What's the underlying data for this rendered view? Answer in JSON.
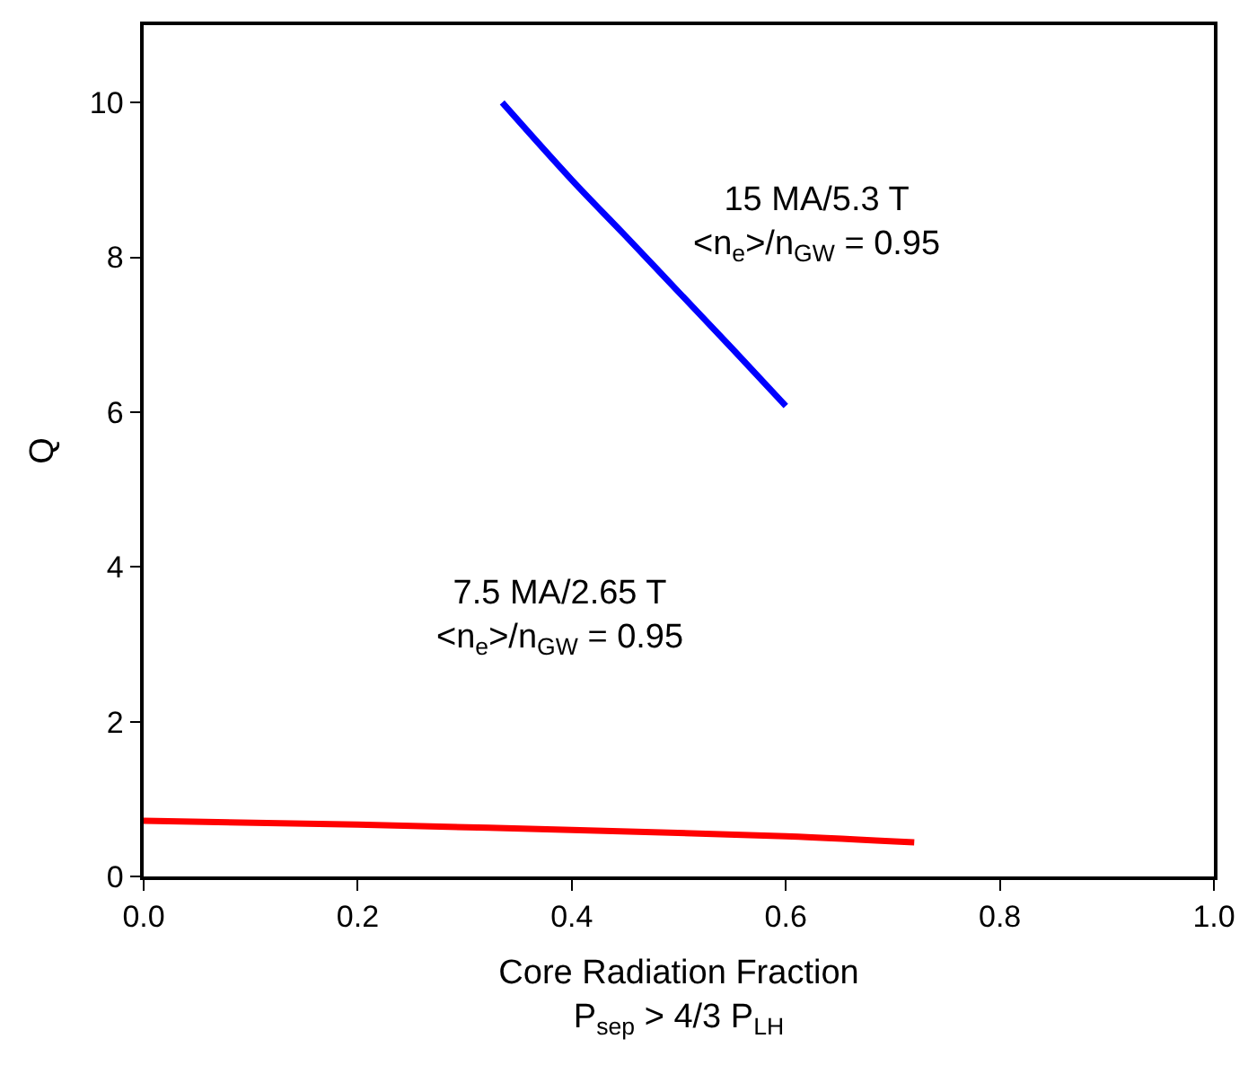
{
  "chart_data": {
    "type": "line",
    "xlabel": "Core Radiation Fraction\nP$_{sep}$ > 4/3 P$_{LH}$",
    "ylabel": "Q",
    "xlim": [
      0,
      1
    ],
    "ylim": [
      0,
      11
    ],
    "xticks": [
      {
        "value": 0,
        "label": "0.0"
      },
      {
        "value": 0.2,
        "label": "0.2"
      },
      {
        "value": 0.4,
        "label": "0.4"
      },
      {
        "value": 0.6,
        "label": "0.6"
      },
      {
        "value": 0.8,
        "label": "0.8"
      },
      {
        "value": 1,
        "label": "1.0"
      }
    ],
    "yticks": [
      0,
      2,
      4,
      6,
      8,
      10
    ],
    "series": [
      {
        "color": "#0000ff",
        "x": [
          0.335,
          0.4,
          0.45,
          0.5,
          0.55,
          0.6
        ],
        "values": [
          10,
          9.0,
          8.28,
          7.55,
          6.82,
          6.08
        ]
      },
      {
        "color": "#ff0000",
        "x": [
          0,
          0.2,
          0.4,
          0.6,
          0.72
        ],
        "values": [
          0.72,
          0.67,
          0.6,
          0.52,
          0.44
        ]
      }
    ],
    "annotations": [
      "15 MA/5.3 T\n<n$_{e}$>/n$_{GW}$ = 0.95",
      "7.5 MA/2.65 T\n<n$_{e}$>/n$_{GW}$ = 0.95"
    ],
    "line_style": "solid",
    "marker": "none"
  }
}
